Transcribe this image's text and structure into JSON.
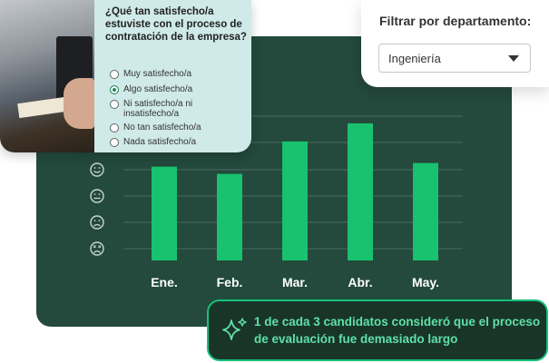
{
  "survey": {
    "question": "¿Qué tan satisfecho/a estuviste con el proceso de contratación de la empresa?",
    "options": [
      "Muy satisfecho/a",
      "Algo satisfecho/a",
      "Ni satisfecho/a ni insatisfecho/a",
      "No tan satisfecho/a",
      "Nada satisfecho/a"
    ],
    "selected": "Algo satisfecho/a"
  },
  "filter": {
    "label": "Filtrar por departamento:",
    "selected_value": "Ingeniería"
  },
  "chart_data": {
    "type": "bar",
    "categories": [
      "Ene.",
      "Feb.",
      "Mar.",
      "Abr.",
      "May."
    ],
    "values": [
      3.6,
      3.4,
      4.3,
      4.8,
      3.7
    ],
    "ylim": [
      1,
      5
    ],
    "y_icons": [
      "very-happy-face-icon",
      "smile-face-icon",
      "neutral-face-icon",
      "sad-face-icon",
      "very-sad-face-icon"
    ],
    "grid": true,
    "bar_color": "#18c26e"
  },
  "callout": {
    "text": "1 de cada 3 candidatos consideró que el proceso de evaluación fue demasiado largo",
    "icon": "sparkle-icon"
  },
  "colors": {
    "panel": "#234a3c",
    "accent": "#17c07a",
    "survey_bg": "#cfeae8"
  }
}
